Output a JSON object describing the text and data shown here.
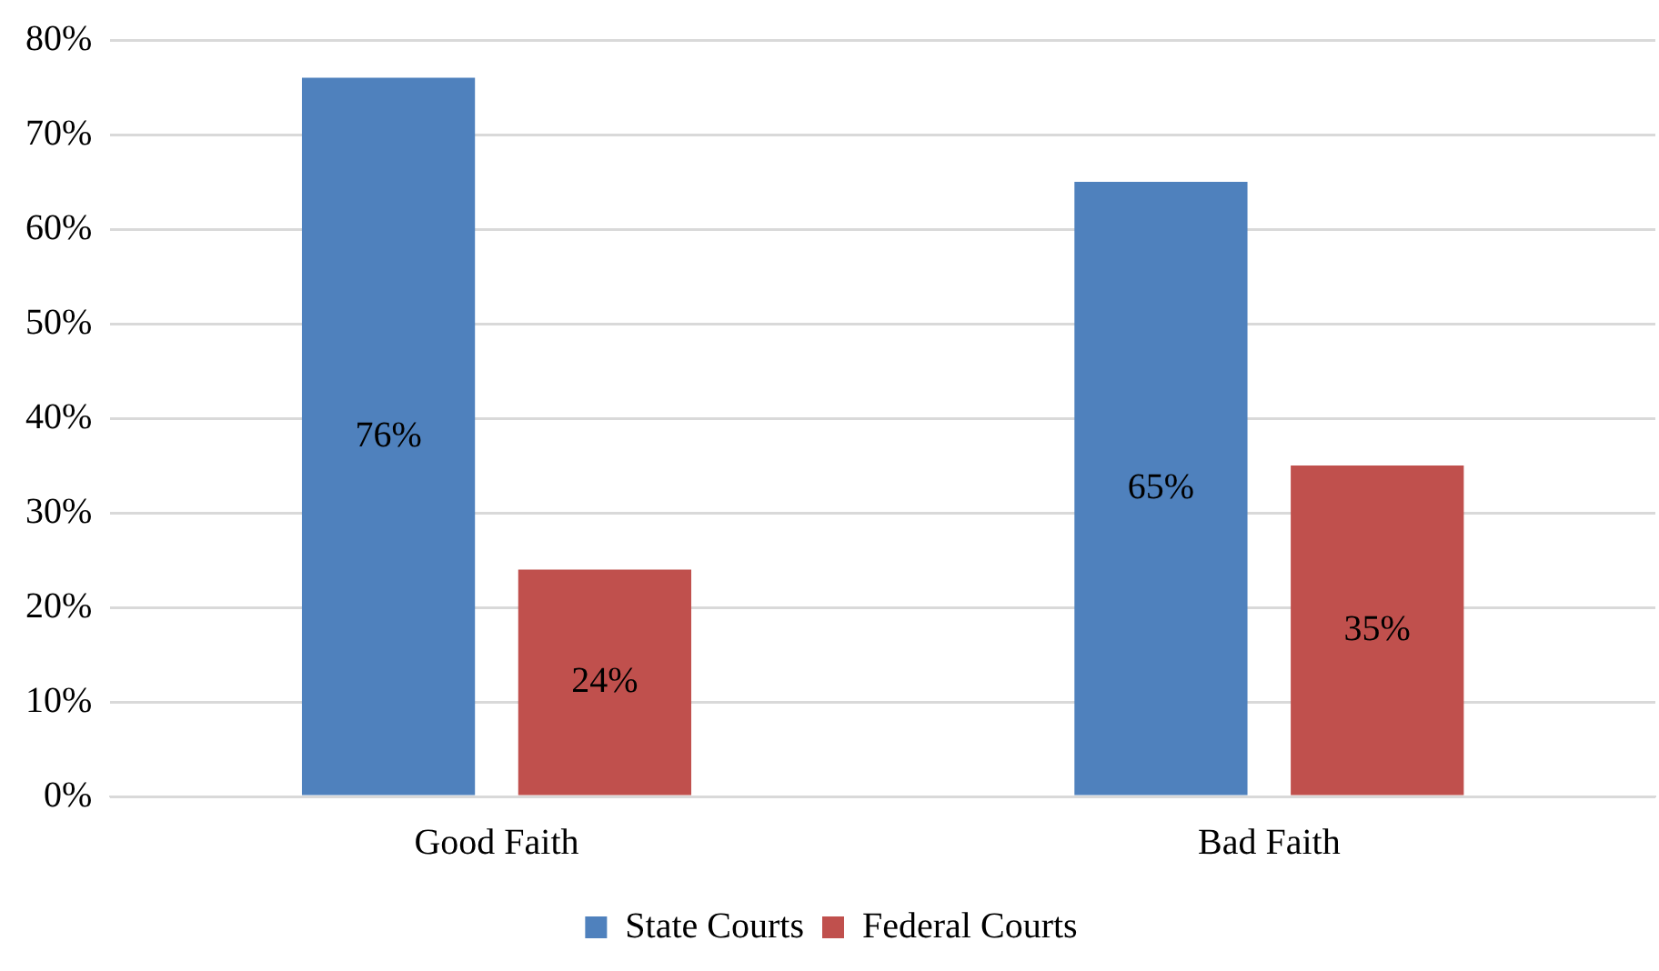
{
  "chart_data": {
    "type": "bar",
    "categories": [
      "Good Faith",
      "Bad Faith"
    ],
    "series": [
      {
        "name": "State Courts",
        "color": "#4f81bd",
        "values": [
          76,
          65
        ],
        "value_labels": [
          "76%",
          "65%"
        ]
      },
      {
        "name": "Federal Courts",
        "color": "#c0504d",
        "values": [
          24,
          35
        ],
        "value_labels": [
          "24%",
          "35%"
        ]
      }
    ],
    "ylim": [
      0,
      80
    ],
    "yticks": [
      {
        "value": 0,
        "label": "0%"
      },
      {
        "value": 10,
        "label": "10%"
      },
      {
        "value": 20,
        "label": "20%"
      },
      {
        "value": 30,
        "label": "30%"
      },
      {
        "value": 40,
        "label": "40%"
      },
      {
        "value": 50,
        "label": "50%"
      },
      {
        "value": 60,
        "label": "60%"
      },
      {
        "value": 70,
        "label": "70%"
      },
      {
        "value": 80,
        "label": "80%"
      }
    ],
    "grid": "y",
    "legend": "bottom"
  }
}
